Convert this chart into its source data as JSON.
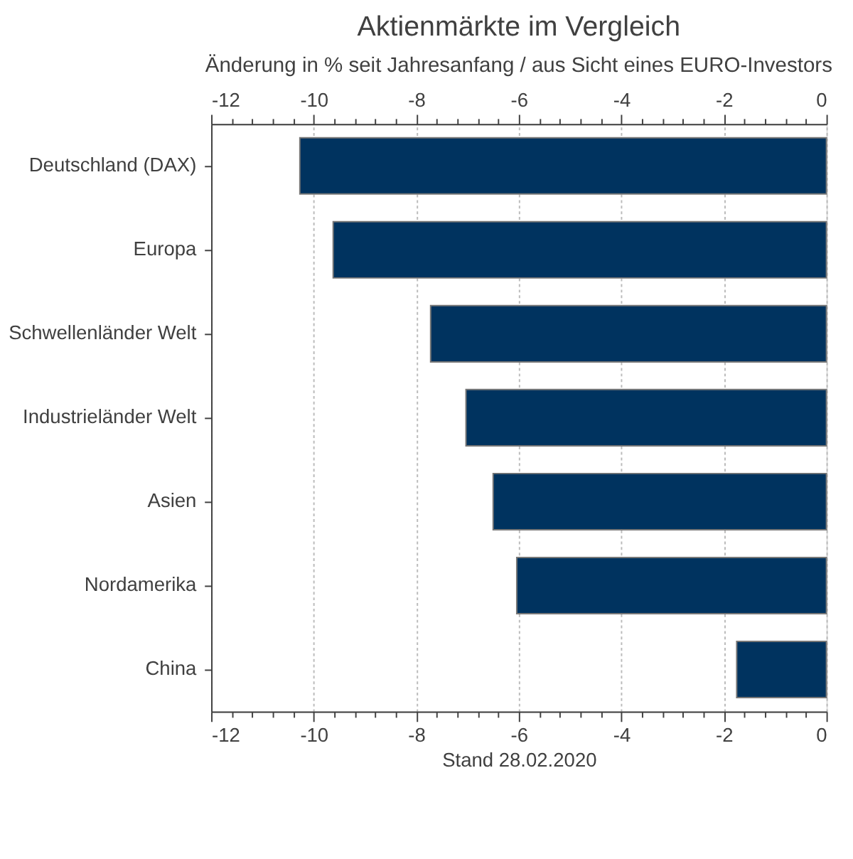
{
  "chart_data": {
    "type": "bar",
    "orientation": "horizontal",
    "title": "Aktienmärkte im Vergleich",
    "subtitle": "Änderung in % seit Jahresanfang / aus Sicht eines EURO-Investors",
    "xlabel": "Stand 28.02.2020",
    "categories": [
      "Deutschland (DAX)",
      "Europa",
      "Schwellenländer Welt",
      "Industrieländer Welt",
      "Asien",
      "Nordamerika",
      "China"
    ],
    "values": [
      -10.27,
      -9.62,
      -7.72,
      -7.03,
      -6.5,
      -6.04,
      -1.75
    ],
    "color": "#00335f",
    "xlim": [
      -12,
      0
    ],
    "xticks": [
      -12,
      {
        "value": -11.6,
        "label": null
      },
      {
        "value": -11.2,
        "label": null
      },
      {
        "value": -10.8,
        "label": null
      },
      {
        "value": -10.4,
        "label": null
      },
      -10,
      {
        "value": -9.6,
        "label": null
      },
      {
        "value": -9.2,
        "label": null
      },
      {
        "value": -8.8,
        "label": null
      },
      {
        "value": -8.4,
        "label": null
      },
      -8,
      {
        "value": -7.6,
        "label": null
      },
      {
        "value": -7.2,
        "label": null
      },
      {
        "value": -6.8,
        "label": null
      },
      {
        "value": -6.4,
        "label": null
      },
      -6,
      {
        "value": -5.6,
        "label": null
      },
      {
        "value": -5.2,
        "label": null
      },
      {
        "value": -4.8,
        "label": null
      },
      {
        "value": -4.4,
        "label": null
      },
      -4,
      {
        "value": -3.6,
        "label": null
      },
      {
        "value": -3.2,
        "label": null
      },
      {
        "value": -2.8,
        "label": null
      },
      {
        "value": -2.4,
        "label": null
      },
      -2,
      {
        "value": -1.6,
        "label": null
      },
      {
        "value": -1.2,
        "label": null
      },
      {
        "value": -0.8,
        "label": null
      },
      {
        "value": -0.4,
        "label": null
      },
      0
    ],
    "x2lim": [
      -12,
      0
    ],
    "x2ticks": [
      -12,
      {
        "value": -11.6,
        "label": null
      },
      {
        "value": -11.2,
        "label": null
      },
      {
        "value": -10.8,
        "label": null
      },
      {
        "value": -10.4,
        "label": null
      },
      -10,
      {
        "value": -9.6,
        "label": null
      },
      {
        "value": -9.2,
        "label": null
      },
      {
        "value": -8.8,
        "label": null
      },
      {
        "value": -8.4,
        "label": null
      },
      -8,
      {
        "value": -7.6,
        "label": null
      },
      {
        "value": -7.2,
        "label": null
      },
      {
        "value": -6.8,
        "label": null
      },
      {
        "value": -6.4,
        "label": null
      },
      -6,
      {
        "value": -5.6,
        "label": null
      },
      {
        "value": -5.2,
        "label": null
      },
      {
        "value": -4.8,
        "label": null
      },
      {
        "value": -4.4,
        "label": null
      },
      -4,
      {
        "value": -3.6,
        "label": null
      },
      {
        "value": -3.2,
        "label": null
      },
      {
        "value": -2.8,
        "label": null
      },
      {
        "value": -2.4,
        "label": null
      },
      -2,
      {
        "value": -1.6,
        "label": null
      },
      {
        "value": -1.2,
        "label": null
      },
      {
        "value": -0.8,
        "label": null
      },
      {
        "value": -0.4,
        "label": null
      },
      0
    ],
    "grid": "x"
  }
}
